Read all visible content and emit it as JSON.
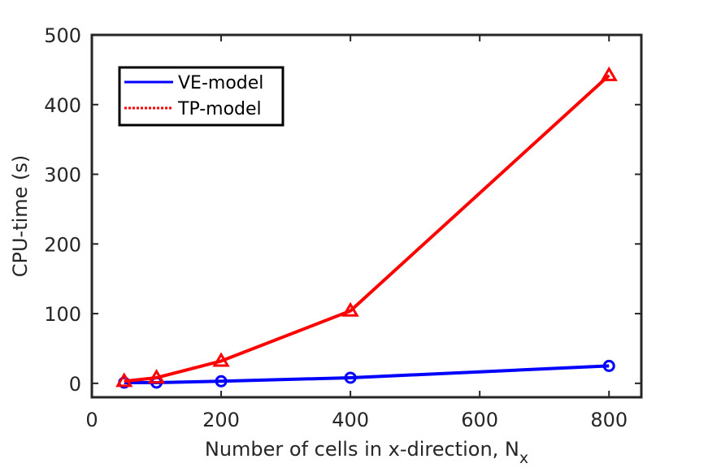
{
  "chart_data": {
    "type": "line",
    "xlabel": "Number of cells in x-direction, N",
    "xlabel_subscript": "x",
    "ylabel": "CPU-time (s)",
    "xlim": [
      0,
      850
    ],
    "ylim": [
      -20,
      500
    ],
    "xticks": [
      0,
      200,
      400,
      600,
      800
    ],
    "yticks": [
      0,
      100,
      200,
      300,
      400,
      500
    ],
    "grid": false,
    "legend_position": "top-left",
    "series": [
      {
        "name": "VE-model",
        "color": "#0000ff",
        "line_style": "solid",
        "marker": "circle",
        "x": [
          50,
          100,
          200,
          400,
          800
        ],
        "y": [
          1,
          1,
          3,
          8,
          25
        ]
      },
      {
        "name": "TP-model",
        "color": "#ff0000",
        "line_style": "dotted",
        "marker": "triangle",
        "x": [
          50,
          100,
          200,
          400,
          800
        ],
        "y": [
          3,
          8,
          32,
          104,
          442
        ]
      }
    ]
  }
}
